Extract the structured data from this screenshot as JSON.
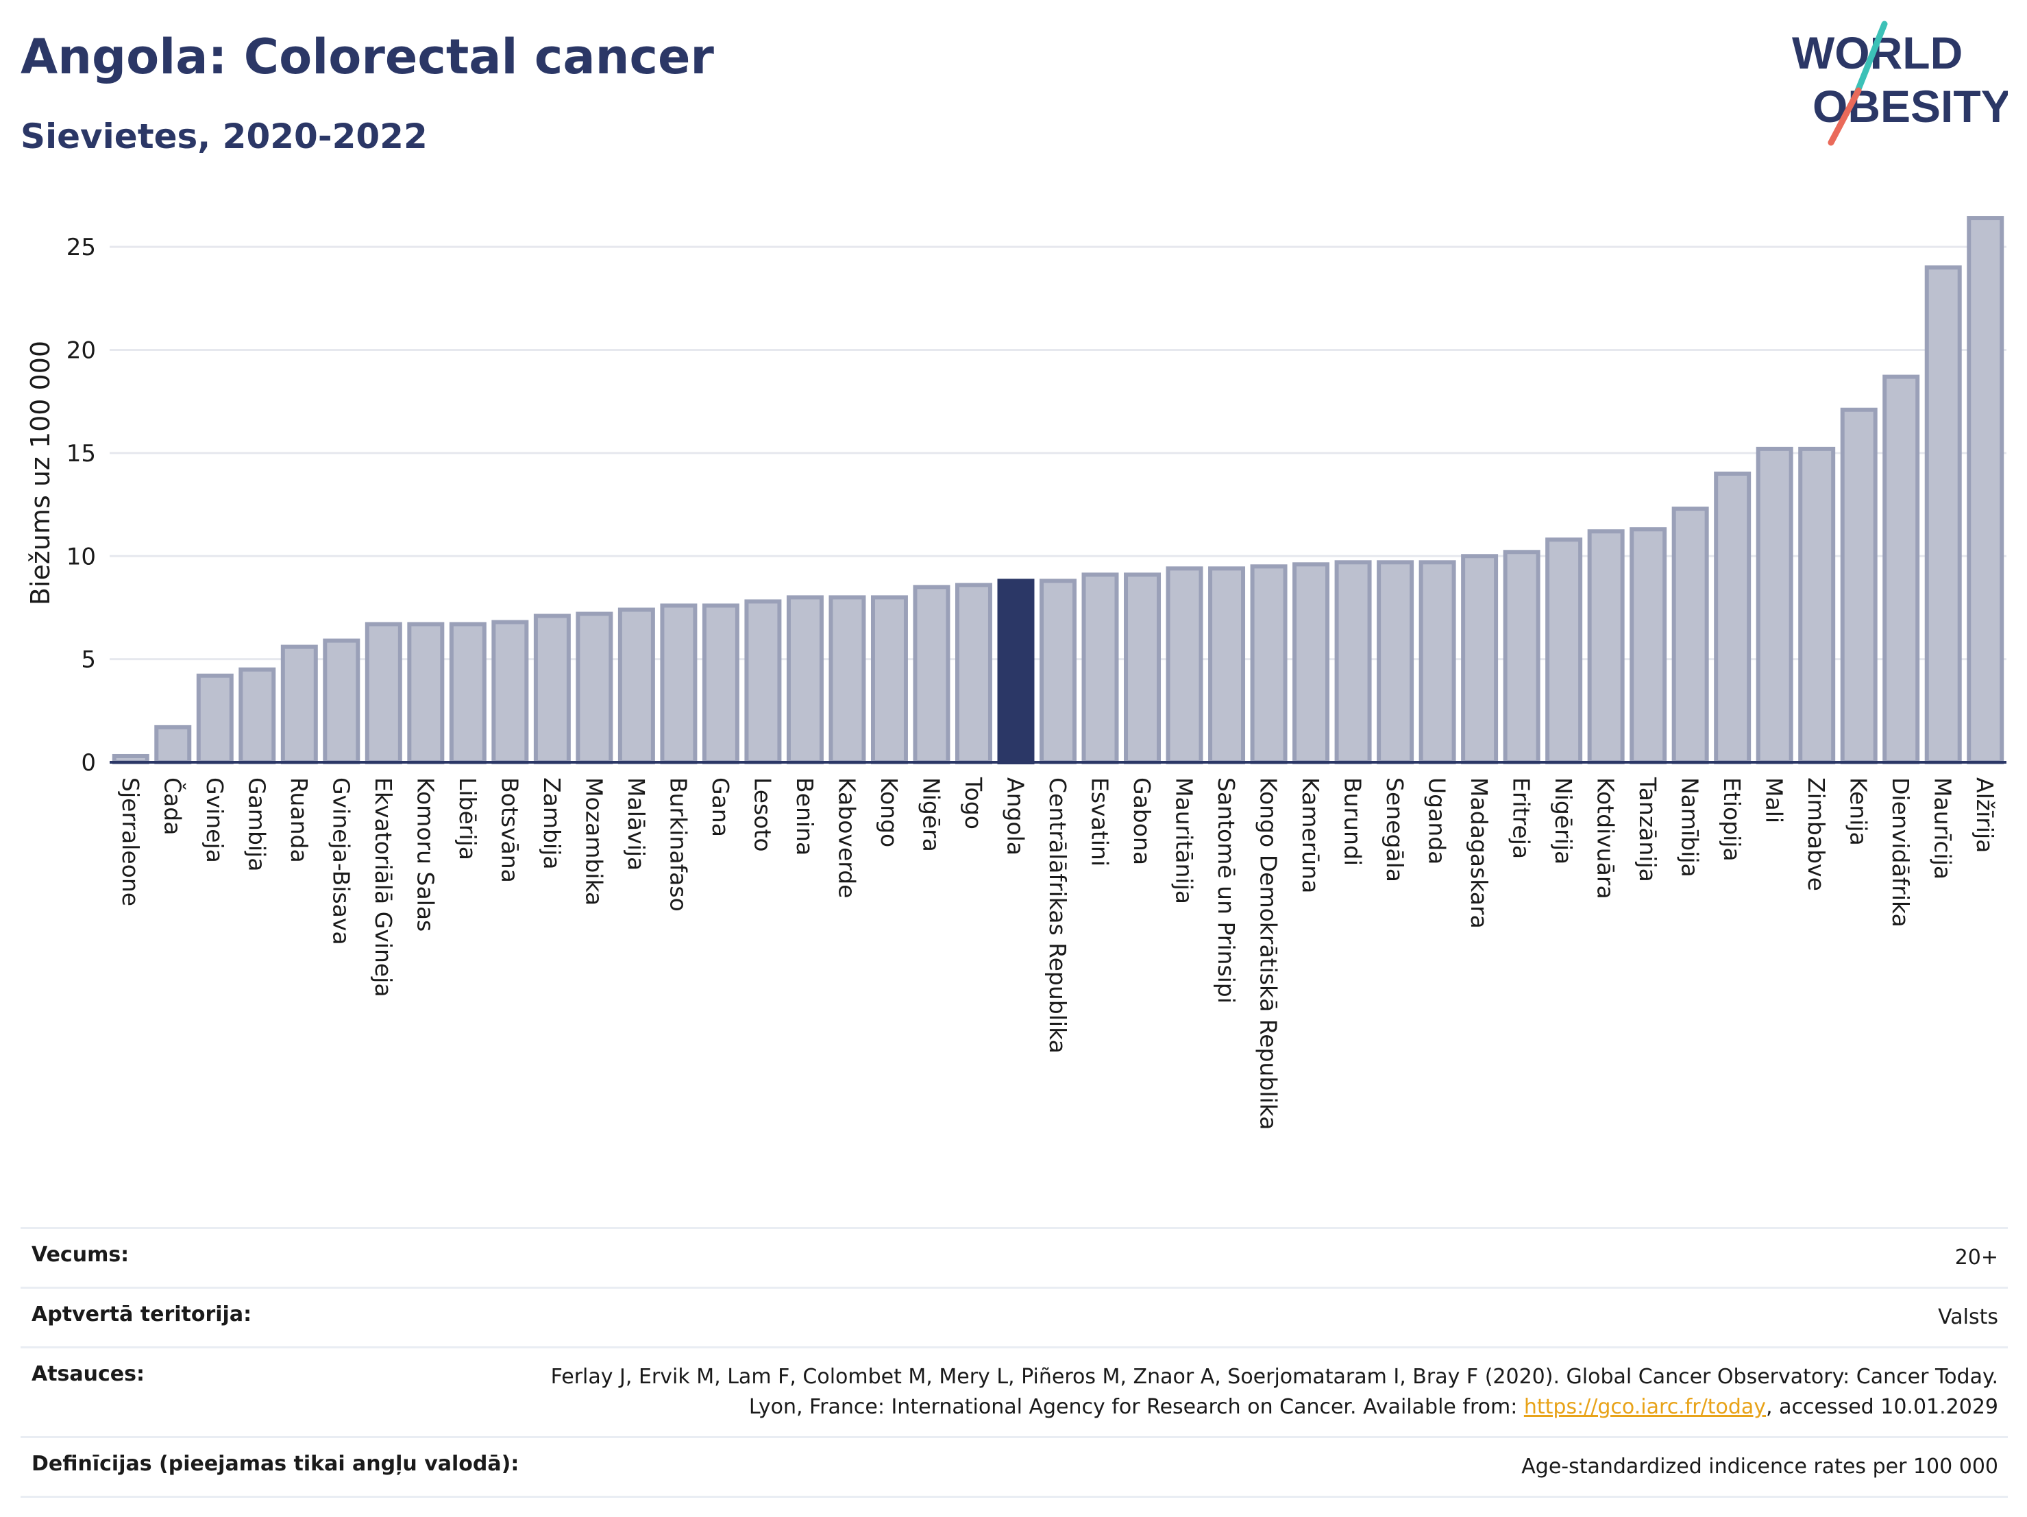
{
  "header": {
    "title": "Angola: Colorectal cancer",
    "subtitle": "Sievietes, 2020-2022",
    "logo_line1": "WORLD",
    "logo_line2": "OBESITY"
  },
  "colors": {
    "title": "#2b3766",
    "bar_fill": "#bcc0cf",
    "bar_stroke": "#9aa0b8",
    "highlight": "#2b3766",
    "link": "#e8a319",
    "logo_teal": "#3cc1b7",
    "logo_coral": "#ea6a5a"
  },
  "chart_data": {
    "type": "bar",
    "ylabel": "Biežums uz 100 000",
    "ylim": [
      0,
      27
    ],
    "yticks": [
      0,
      5,
      10,
      15,
      20,
      25
    ],
    "grid": true,
    "highlight": "Angola",
    "categories": [
      "Sjerraleone",
      "Čada",
      "Gvineja",
      "Gambija",
      "Ruanda",
      "Gvineja-Bisava",
      "Ekvatoriālā Gvineja",
      "Komoru Salas",
      "Libērija",
      "Botsvāna",
      "Zambija",
      "Mozambika",
      "Malāvija",
      "Burkinafaso",
      "Gana",
      "Lesoto",
      "Benina",
      "Kaboverde",
      "Kongo",
      "Nigēra",
      "Togo",
      "Angola",
      "Centrālāfrikas Republika",
      "Esvatini",
      "Gabona",
      "Mauritānija",
      "Santomē un Prinsipi",
      "Kongo Demokrātiskā Republika",
      "Kamerūna",
      "Burundi",
      "Senegāla",
      "Uganda",
      "Madagaskara",
      "Eritreja",
      "Nigērija",
      "Kotdivuāra",
      "Tanzānija",
      "Namībija",
      "Etiopija",
      "Mali",
      "Zimbabve",
      "Kenija",
      "Dienvidāfrika",
      "Maurīcija",
      "Alžīrija"
    ],
    "values": [
      0.3,
      1.7,
      4.2,
      4.5,
      5.6,
      5.9,
      6.7,
      6.7,
      6.7,
      6.8,
      7.1,
      7.2,
      7.4,
      7.6,
      7.6,
      7.8,
      8.0,
      8.0,
      8.0,
      8.5,
      8.6,
      8.8,
      8.8,
      9.1,
      9.1,
      9.4,
      9.4,
      9.5,
      9.6,
      9.7,
      9.7,
      9.7,
      10.0,
      10.2,
      10.8,
      11.2,
      11.3,
      12.3,
      14.0,
      15.2,
      15.2,
      17.1,
      18.7,
      24.0,
      26.4
    ]
  },
  "meta": [
    {
      "label": "Vecums:",
      "value": "20+"
    },
    {
      "label": "Aptvertā teritorija:",
      "value": "Valsts"
    },
    {
      "label": "Atsauces:",
      "value_pre": "Ferlay J, Ervik M, Lam F, Colombet M, Mery L, Piñeros M, Znaor A, Soerjomataram I, Bray F (2020). Global Cancer Observatory: Cancer Today. Lyon, France: International Agency for Research on Cancer. Available from: ",
      "link": "https://gco.iarc.fr/today",
      "value_post": ", accessed 10.01.2029"
    },
    {
      "label": "Definīcijas (pieejamas tikai angļu valodā):",
      "value": "Age-standardized indicence rates per 100 000"
    }
  ]
}
